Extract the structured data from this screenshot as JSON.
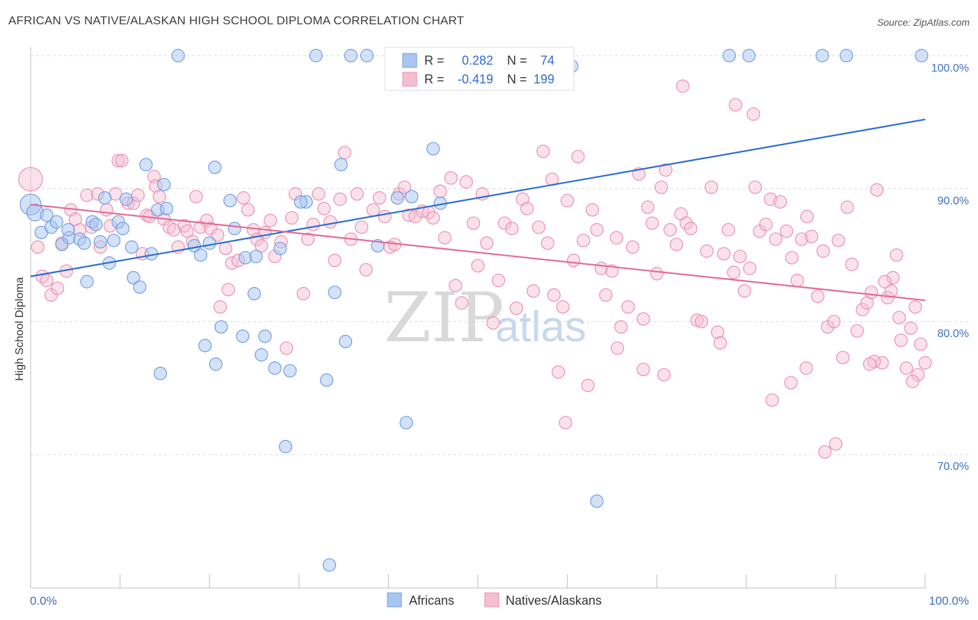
{
  "title": "AFRICAN VS NATIVE/ALASKAN HIGH SCHOOL DIPLOMA CORRELATION CHART",
  "source": "Source: ZipAtlas.com",
  "watermark": {
    "zip": "ZIP",
    "atlas": "atlas"
  },
  "colors": {
    "blue": "#6d9de6",
    "blue_fill": "#a9c6f0",
    "blue_line": "#2b6cd4",
    "pink": "#ec8fb0",
    "pink_fill": "#f4bfd1",
    "pink_line": "#e46a98",
    "tick_text": "#3d6fbf",
    "grid": "#d8d8d8"
  },
  "legend": {
    "rows": [
      {
        "r_label": "R =",
        "r_value": "0.282",
        "n_label": "N =",
        "n_value": "74"
      },
      {
        "r_label": "R =",
        "r_value": "-0.419",
        "n_label": "N =",
        "n_value": "199"
      }
    ]
  },
  "bottom_legend": [
    "Africans",
    "Natives/Alaskans"
  ],
  "chart_data": {
    "type": "scatter",
    "title": "AFRICAN VS NATIVE/ALASKAN HIGH SCHOOL DIPLOMA CORRELATION CHART",
    "xlabel": "",
    "ylabel": "High School Diploma",
    "x_tick_labels": [
      "0.0%",
      "100.0%"
    ],
    "y_tick_labels": [
      "100.0%",
      "90.0%",
      "80.0%",
      "70.0%"
    ],
    "xlim": [
      0,
      100
    ],
    "ylim": [
      60.5,
      101.5
    ],
    "y_ticks": [
      100,
      90,
      80,
      70
    ],
    "grid": "horizontal dashed",
    "legend_position": "top-center",
    "series": [
      {
        "name": "Africans",
        "R": 0.282,
        "N": 74,
        "trend": [
          [
            0,
            83.4
          ],
          [
            100,
            95.2
          ]
        ],
        "points": [
          [
            0,
            88.8
          ],
          [
            0.5,
            88.2
          ],
          [
            1.2,
            86.7
          ],
          [
            1.8,
            88.0
          ],
          [
            2.3,
            87.1
          ],
          [
            2.9,
            87.5
          ],
          [
            3.5,
            85.8
          ],
          [
            4.3,
            86.3
          ],
          [
            4.2,
            86.9
          ],
          [
            5.5,
            86.2
          ],
          [
            6.0,
            85.9
          ],
          [
            6.3,
            83.0
          ],
          [
            6.9,
            87.5
          ],
          [
            7.3,
            87.3
          ],
          [
            7.8,
            86.0
          ],
          [
            8.3,
            89.3
          ],
          [
            8.8,
            84.4
          ],
          [
            9.3,
            86.1
          ],
          [
            9.8,
            87.5
          ],
          [
            10.3,
            87.0
          ],
          [
            10.7,
            89.2
          ],
          [
            11.3,
            85.6
          ],
          [
            11.5,
            83.3
          ],
          [
            12.2,
            82.6
          ],
          [
            12.9,
            91.8
          ],
          [
            13.5,
            85.1
          ],
          [
            14.2,
            88.4
          ],
          [
            14.5,
            76.1
          ],
          [
            14.9,
            90.3
          ],
          [
            15.2,
            88.5
          ],
          [
            16.5,
            100.0
          ],
          [
            18.3,
            85.7
          ],
          [
            19.0,
            85.0
          ],
          [
            19.5,
            78.2
          ],
          [
            20.0,
            85.9
          ],
          [
            20.6,
            91.6
          ],
          [
            20.7,
            76.8
          ],
          [
            21.3,
            79.6
          ],
          [
            22.3,
            89.1
          ],
          [
            22.8,
            87.0
          ],
          [
            23.7,
            78.9
          ],
          [
            24.0,
            84.8
          ],
          [
            25.0,
            82.1
          ],
          [
            25.2,
            84.9
          ],
          [
            25.8,
            77.5
          ],
          [
            26.2,
            78.9
          ],
          [
            27.3,
            76.5
          ],
          [
            27.9,
            85.5
          ],
          [
            28.5,
            70.6
          ],
          [
            29.0,
            76.3
          ],
          [
            30.8,
            89.0
          ],
          [
            31.9,
            100.0
          ],
          [
            33.1,
            75.6
          ],
          [
            34.0,
            82.2
          ],
          [
            34.7,
            91.8
          ],
          [
            35.8,
            100.0
          ],
          [
            35.2,
            78.5
          ],
          [
            37.6,
            100.0
          ],
          [
            38.8,
            85.7
          ],
          [
            41.0,
            89.3
          ],
          [
            42.0,
            72.4
          ],
          [
            42.6,
            89.4
          ],
          [
            45.0,
            93.0
          ],
          [
            45.8,
            88.9
          ],
          [
            58.0,
            100.0
          ],
          [
            60.5,
            99.2
          ],
          [
            63.3,
            66.5
          ],
          [
            78.1,
            100.0
          ],
          [
            80.3,
            100.0
          ],
          [
            88.5,
            100.0
          ],
          [
            91.2,
            100.0
          ],
          [
            99.6,
            100.0
          ],
          [
            33.4,
            61.7
          ],
          [
            30.2,
            89.0
          ]
        ]
      },
      {
        "name": "Natives/Alaskans",
        "R": -0.419,
        "N": 199,
        "trend": [
          [
            0,
            88.8
          ],
          [
            100,
            81.6
          ]
        ],
        "points": [
          [
            0,
            90.7
          ],
          [
            0.8,
            85.6
          ],
          [
            1.3,
            83.4
          ],
          [
            1.8,
            83.1
          ],
          [
            2.3,
            82.0
          ],
          [
            3.0,
            82.5
          ],
          [
            3.5,
            85.9
          ],
          [
            4.0,
            83.8
          ],
          [
            4.5,
            88.4
          ],
          [
            5.0,
            87.7
          ],
          [
            5.5,
            86.9
          ],
          [
            6.3,
            89.5
          ],
          [
            6.8,
            87.1
          ],
          [
            7.5,
            89.6
          ],
          [
            7.8,
            85.6
          ],
          [
            8.5,
            88.4
          ],
          [
            8.9,
            87.2
          ],
          [
            9.5,
            89.6
          ],
          [
            9.8,
            92.1
          ],
          [
            10.2,
            92.1
          ],
          [
            10.9,
            88.9
          ],
          [
            11.5,
            88.9
          ],
          [
            12.0,
            89.5
          ],
          [
            12.5,
            85.1
          ],
          [
            13.0,
            88.0
          ],
          [
            13.3,
            87.9
          ],
          [
            13.8,
            90.9
          ],
          [
            14.0,
            90.2
          ],
          [
            14.4,
            89.4
          ],
          [
            14.9,
            87.7
          ],
          [
            15.5,
            87.1
          ],
          [
            16.0,
            86.9
          ],
          [
            16.5,
            85.6
          ],
          [
            17.2,
            87.2
          ],
          [
            17.5,
            86.8
          ],
          [
            18.1,
            86.0
          ],
          [
            18.5,
            89.4
          ],
          [
            19.0,
            87.1
          ],
          [
            19.7,
            87.6
          ],
          [
            20.1,
            87.0
          ],
          [
            20.9,
            86.5
          ],
          [
            21.2,
            81.1
          ],
          [
            21.8,
            85.5
          ],
          [
            22.1,
            82.4
          ],
          [
            22.5,
            84.4
          ],
          [
            23.2,
            84.6
          ],
          [
            23.8,
            89.3
          ],
          [
            24.3,
            88.4
          ],
          [
            24.9,
            86.9
          ],
          [
            25.3,
            86.2
          ],
          [
            25.8,
            85.7
          ],
          [
            26.2,
            86.7
          ],
          [
            26.8,
            87.6
          ],
          [
            27.3,
            84.9
          ],
          [
            28.0,
            86.0
          ],
          [
            28.6,
            78.0
          ],
          [
            29.2,
            87.8
          ],
          [
            29.6,
            89.6
          ],
          [
            30.5,
            82.1
          ],
          [
            31.0,
            86.2
          ],
          [
            31.6,
            87.3
          ],
          [
            32.2,
            89.6
          ],
          [
            32.8,
            88.5
          ],
          [
            33.5,
            87.5
          ],
          [
            34.0,
            84.6
          ],
          [
            34.6,
            89.2
          ],
          [
            35.1,
            92.7
          ],
          [
            35.8,
            86.2
          ],
          [
            36.5,
            89.6
          ],
          [
            37.0,
            87.1
          ],
          [
            37.5,
            83.9
          ],
          [
            38.3,
            88.4
          ],
          [
            39.0,
            89.3
          ],
          [
            39.6,
            87.9
          ],
          [
            40.2,
            85.6
          ],
          [
            40.7,
            85.8
          ],
          [
            41.2,
            89.6
          ],
          [
            41.8,
            90.1
          ],
          [
            42.3,
            88.0
          ],
          [
            43.0,
            87.9
          ],
          [
            43.8,
            88.3
          ],
          [
            44.5,
            88.2
          ],
          [
            45.0,
            87.8
          ],
          [
            45.8,
            89.8
          ],
          [
            46.3,
            86.3
          ],
          [
            47.0,
            90.8
          ],
          [
            47.5,
            82.7
          ],
          [
            48.2,
            81.4
          ],
          [
            48.7,
            90.5
          ],
          [
            49.5,
            87.4
          ],
          [
            50.0,
            84.2
          ],
          [
            50.5,
            89.6
          ],
          [
            51.0,
            85.9
          ],
          [
            51.7,
            79.9
          ],
          [
            52.3,
            83.1
          ],
          [
            53.0,
            87.4
          ],
          [
            53.8,
            87.0
          ],
          [
            54.3,
            81.0
          ],
          [
            55.0,
            89.2
          ],
          [
            55.5,
            88.5
          ],
          [
            56.2,
            82.3
          ],
          [
            56.8,
            87.1
          ],
          [
            57.3,
            92.8
          ],
          [
            57.8,
            85.9
          ],
          [
            58.3,
            90.7
          ],
          [
            59.0,
            76.2
          ],
          [
            59.5,
            81.1
          ],
          [
            60.0,
            89.1
          ],
          [
            60.7,
            84.6
          ],
          [
            61.2,
            92.4
          ],
          [
            61.8,
            86.1
          ],
          [
            62.3,
            75.2
          ],
          [
            62.8,
            88.4
          ],
          [
            63.3,
            86.9
          ],
          [
            63.8,
            84.0
          ],
          [
            64.3,
            82.0
          ],
          [
            65.0,
            83.8
          ],
          [
            65.5,
            86.3
          ],
          [
            66.0,
            79.6
          ],
          [
            66.8,
            81.1
          ],
          [
            67.3,
            85.6
          ],
          [
            68.0,
            91.1
          ],
          [
            68.5,
            80.2
          ],
          [
            69.0,
            88.6
          ],
          [
            69.5,
            87.4
          ],
          [
            70.0,
            83.6
          ],
          [
            70.5,
            90.1
          ],
          [
            71.0,
            91.4
          ],
          [
            71.5,
            86.9
          ],
          [
            72.2,
            85.8
          ],
          [
            72.7,
            88.1
          ],
          [
            73.3,
            87.4
          ],
          [
            73.8,
            87.0
          ],
          [
            74.5,
            80.1
          ],
          [
            75.0,
            80.0
          ],
          [
            75.6,
            85.3
          ],
          [
            76.1,
            90.1
          ],
          [
            76.8,
            79.2
          ],
          [
            77.5,
            85.1
          ],
          [
            78.0,
            86.9
          ],
          [
            78.6,
            83.7
          ],
          [
            79.3,
            84.9
          ],
          [
            79.8,
            82.3
          ],
          [
            80.4,
            84.0
          ],
          [
            81.0,
            90.1
          ],
          [
            81.5,
            86.8
          ],
          [
            82.2,
            87.3
          ],
          [
            82.7,
            89.2
          ],
          [
            83.3,
            86.2
          ],
          [
            83.8,
            89.0
          ],
          [
            84.5,
            86.8
          ],
          [
            85.1,
            84.8
          ],
          [
            85.7,
            83.1
          ],
          [
            86.2,
            86.2
          ],
          [
            86.8,
            87.9
          ],
          [
            87.3,
            86.4
          ],
          [
            88.0,
            81.9
          ],
          [
            88.6,
            85.3
          ],
          [
            89.1,
            79.6
          ],
          [
            89.8,
            80.0
          ],
          [
            90.3,
            86.1
          ],
          [
            90.8,
            77.3
          ],
          [
            91.3,
            88.6
          ],
          [
            91.8,
            84.3
          ],
          [
            92.4,
            79.3
          ],
          [
            93.0,
            80.9
          ],
          [
            93.5,
            81.4
          ],
          [
            94.0,
            82.2
          ],
          [
            94.6,
            89.9
          ],
          [
            95.2,
            76.9
          ],
          [
            95.8,
            81.8
          ],
          [
            96.2,
            82.3
          ],
          [
            96.8,
            85.0
          ],
          [
            97.3,
            78.6
          ],
          [
            97.9,
            76.5
          ],
          [
            98.4,
            79.5
          ],
          [
            98.9,
            81.1
          ],
          [
            99.5,
            78.3
          ],
          [
            100.0,
            76.9
          ],
          [
            99.2,
            76.0
          ],
          [
            98.6,
            75.5
          ],
          [
            97.1,
            80.3
          ],
          [
            96.4,
            83.3
          ],
          [
            95.5,
            83.0
          ],
          [
            94.3,
            77.0
          ],
          [
            93.8,
            76.8
          ],
          [
            90.0,
            70.8
          ],
          [
            88.8,
            70.2
          ],
          [
            86.7,
            76.5
          ],
          [
            85.0,
            75.4
          ],
          [
            82.9,
            74.1
          ],
          [
            80.8,
            95.6
          ],
          [
            78.8,
            96.3
          ],
          [
            72.9,
            97.7
          ],
          [
            59.8,
            72.4
          ],
          [
            70.8,
            76.0
          ],
          [
            77.1,
            78.4
          ],
          [
            68.5,
            76.4
          ],
          [
            58.5,
            82.0
          ],
          [
            65.6,
            78.0
          ]
        ]
      }
    ]
  }
}
